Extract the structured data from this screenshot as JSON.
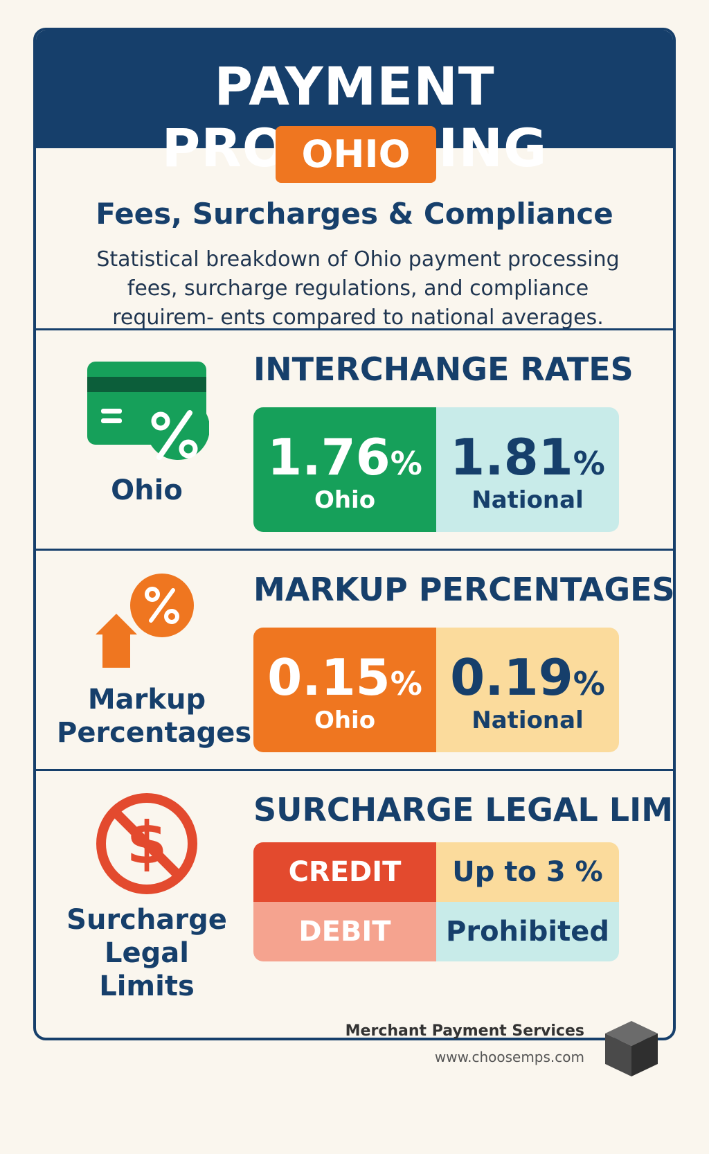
{
  "header": {
    "title": "PAYMENT PROCESSING",
    "state": "OHIO",
    "subtitle": "Fees, Surcharges & Compliance",
    "description": "Statistical breakdown of Ohio payment processing fees, surcharge regulations, and compliance requirem- ents compared to national averages."
  },
  "interchange": {
    "row_label": "Ohio",
    "title": "INTERCHANGE RATES",
    "ohio_value": "1.76",
    "ohio_unit": "%",
    "ohio_label": "Ohio",
    "national_value": "1.81",
    "national_unit": "%",
    "national_label": "National",
    "icon": "credit-card-percent-icon"
  },
  "markup": {
    "row_label": "Markup Percentages",
    "title": "MARKUP PERCENTAGES",
    "ohio_value": "0.15",
    "ohio_unit": "%",
    "ohio_label": "Ohio",
    "national_value": "0.19",
    "national_unit": "%",
    "national_label": "National",
    "icon": "percent-arrow-up-icon"
  },
  "surcharge": {
    "row_label": "Surcharge Legal Limits",
    "title": "SURCHARGE LEGAL LIMITS",
    "credit_label": "CREDIT",
    "credit_value": "Up to 3 %",
    "debit_label": "DEBIT",
    "debit_value": "Prohibited",
    "icon": "no-dollar-icon"
  },
  "footer": {
    "brand": "Merchant Payment Services",
    "url": "www.choosemps.com",
    "icon": "cube-logo-icon"
  },
  "colors": {
    "navy": "#163f6b",
    "orange": "#ef7620",
    "green": "#16a05a",
    "light_teal": "#c8ebe9",
    "light_yellow": "#fbdb9c",
    "red": "#e34a2e",
    "salmon": "#f5a38f",
    "background": "#faf6ee"
  }
}
